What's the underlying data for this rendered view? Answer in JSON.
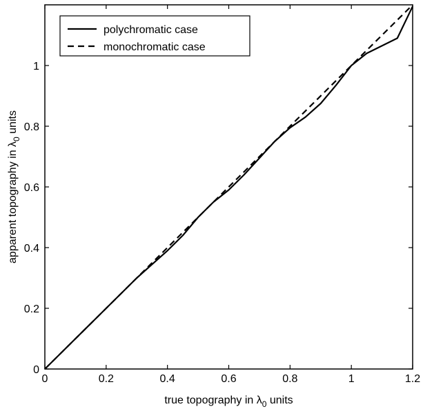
{
  "chart_data": {
    "type": "line",
    "xlabel": "true topography in λ₀ units",
    "ylabel": "apparent topography in λ₀ units",
    "xlabel_parts": {
      "before": "true topography in ",
      "symbol": "λ",
      "subscript": "0",
      "after": " units"
    },
    "ylabel_parts": {
      "before": "apparent topography in ",
      "symbol": "λ",
      "subscript": "0",
      "after": " units"
    },
    "xlim": [
      0,
      1.2
    ],
    "ylim": [
      0,
      1.2
    ],
    "xticks": [
      "0",
      "0.2",
      "0.4",
      "0.6",
      "0.8",
      "1",
      "1.2"
    ],
    "yticks": [
      "0",
      "0.2",
      "0.4",
      "0.6",
      "0.8",
      "1"
    ],
    "grid": false,
    "legend_position": "top-left",
    "series": [
      {
        "name": "polychromatic case",
        "style": "solid",
        "color": "#000000",
        "x": [
          0,
          0.05,
          0.1,
          0.15,
          0.2,
          0.25,
          0.3,
          0.35,
          0.4,
          0.45,
          0.5,
          0.55,
          0.6,
          0.65,
          0.7,
          0.75,
          0.8,
          0.85,
          0.9,
          0.95,
          1.0,
          1.05,
          1.1,
          1.15,
          1.2
        ],
        "y": [
          0,
          0.05,
          0.1,
          0.15,
          0.2,
          0.25,
          0.3,
          0.345,
          0.39,
          0.44,
          0.5,
          0.55,
          0.59,
          0.64,
          0.695,
          0.75,
          0.795,
          0.83,
          0.875,
          0.935,
          1.0,
          1.04,
          1.065,
          1.09,
          1.195
        ]
      },
      {
        "name": "monochromatic case",
        "style": "dashed",
        "color": "#000000",
        "x": [
          0,
          1.2
        ],
        "y": [
          0,
          1.2
        ]
      }
    ]
  }
}
